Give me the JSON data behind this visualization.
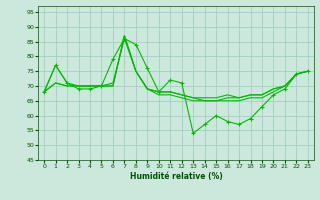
{
  "xlabel": "Humidité relative (%)",
  "xlim": [
    -0.5,
    23.5
  ],
  "ylim": [
    45,
    97
  ],
  "yticks": [
    45,
    50,
    55,
    60,
    65,
    70,
    75,
    80,
    85,
    90,
    95
  ],
  "xticks": [
    0,
    1,
    2,
    3,
    4,
    5,
    6,
    7,
    8,
    9,
    10,
    11,
    12,
    13,
    14,
    15,
    16,
    17,
    18,
    19,
    20,
    21,
    22,
    23
  ],
  "background_color": "#cce8dd",
  "grid_color": "#99ccbb",
  "line_color": "#00bb00",
  "line1_x": [
    0,
    1,
    2,
    3,
    4,
    5,
    6,
    7,
    8,
    9,
    10,
    11,
    12,
    13,
    14,
    15,
    16,
    17,
    18,
    19,
    20,
    21,
    22,
    23
  ],
  "line1_y": [
    68,
    77,
    71,
    69,
    69,
    70,
    79,
    86,
    84,
    76,
    68,
    72,
    71,
    54,
    57,
    60,
    58,
    57,
    59,
    63,
    67,
    69,
    74,
    75
  ],
  "line2_x": [
    0,
    1,
    2,
    3,
    4,
    5,
    6,
    7,
    8,
    9,
    10,
    11,
    12,
    13,
    14,
    15,
    16,
    17,
    18,
    19,
    20,
    21,
    22,
    23
  ],
  "line2_y": [
    68,
    77,
    71,
    70,
    70,
    70,
    71,
    86,
    75,
    69,
    68,
    68,
    67,
    66,
    66,
    66,
    67,
    66,
    67,
    67,
    69,
    70,
    74,
    75
  ],
  "line3_x": [
    0,
    1,
    2,
    3,
    4,
    5,
    6,
    7,
    8,
    9,
    10,
    11,
    12,
    13,
    14,
    15,
    16,
    17,
    18,
    19,
    20,
    21,
    22,
    23
  ],
  "line3_y": [
    68,
    71,
    70,
    70,
    70,
    70,
    70,
    87,
    75,
    69,
    68,
    68,
    67,
    66,
    65,
    65,
    66,
    66,
    67,
    67,
    69,
    70,
    74,
    75
  ],
  "line4_x": [
    0,
    1,
    2,
    3,
    4,
    5,
    6,
    7,
    8,
    9,
    10,
    11,
    12,
    13,
    14,
    15,
    16,
    17,
    18,
    19,
    20,
    21,
    22,
    23
  ],
  "line4_y": [
    68,
    71,
    70,
    70,
    70,
    70,
    70,
    87,
    75,
    69,
    67,
    67,
    66,
    65,
    65,
    65,
    65,
    65,
    66,
    66,
    68,
    70,
    74,
    75
  ]
}
